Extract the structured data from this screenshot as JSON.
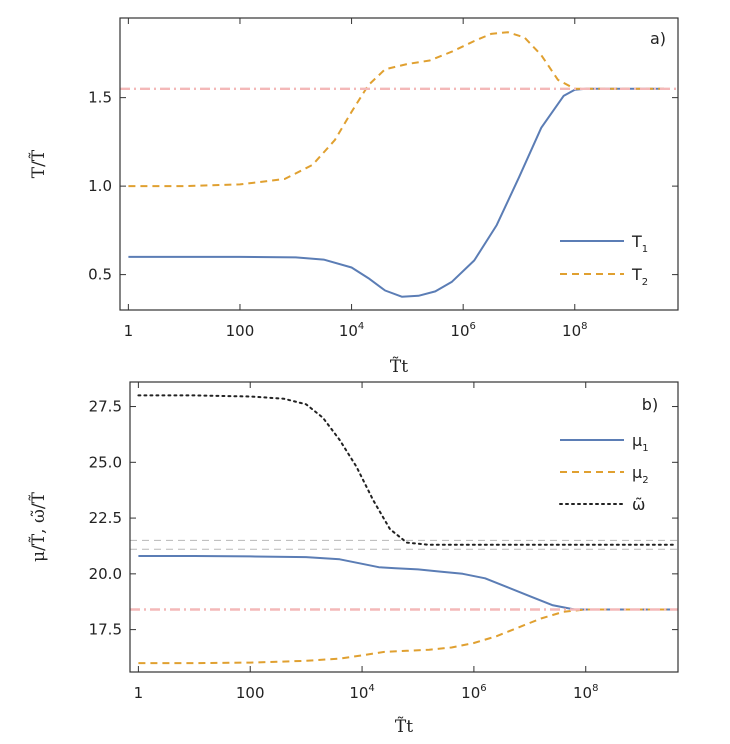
{
  "colors": {
    "blue": "#5b7db5",
    "orange": "#e0a030",
    "black": "#222222",
    "pink": "#f4b8b8",
    "gray": "#b8b8b8"
  },
  "chart_data": [
    {
      "type": "line",
      "panel_label": "a)",
      "xscale": "log10",
      "xlabel": "T̃t",
      "ylabel": "T/T̃",
      "xlim_log10": [
        -0.15,
        9.85
      ],
      "ylim": [
        0.3,
        1.95
      ],
      "xticks": [
        {
          "log10": 0,
          "base": "1",
          "exp": ""
        },
        {
          "log10": 2,
          "base": "100",
          "exp": ""
        },
        {
          "log10": 4,
          "base": "10",
          "exp": "4"
        },
        {
          "log10": 6,
          "base": "10",
          "exp": "6"
        },
        {
          "log10": 8,
          "base": "10",
          "exp": "8"
        }
      ],
      "yticks": [
        0.5,
        1.0,
        1.5
      ],
      "ytick_labels": [
        "0.5",
        "1.0",
        "1.5"
      ],
      "legend_position": "bottom-right",
      "series": [
        {
          "name": "T",
          "sub": "1",
          "color": "blue",
          "style": "solid",
          "x_log10": [
            0,
            1,
            2,
            3,
            3.5,
            4.0,
            4.3,
            4.6,
            4.9,
            5.2,
            5.5,
            5.8,
            6.2,
            6.6,
            7.0,
            7.4,
            7.8,
            8.0,
            8.2,
            8.6,
            9.0,
            9.6
          ],
          "y": [
            0.6,
            0.6,
            0.6,
            0.597,
            0.585,
            0.54,
            0.48,
            0.41,
            0.375,
            0.38,
            0.405,
            0.46,
            0.58,
            0.78,
            1.05,
            1.33,
            1.51,
            1.545,
            1.55,
            1.55,
            1.55,
            1.55
          ]
        },
        {
          "name": "T",
          "sub": "2",
          "color": "orange",
          "style": "dashed",
          "x_log10": [
            0,
            1,
            2,
            2.8,
            3.3,
            3.7,
            4.0,
            4.3,
            4.6,
            5.0,
            5.4,
            5.8,
            6.2,
            6.5,
            6.8,
            7.1,
            7.4,
            7.7,
            8.0,
            8.4,
            9.0,
            9.6
          ],
          "y": [
            1.0,
            1.0,
            1.01,
            1.04,
            1.12,
            1.26,
            1.42,
            1.57,
            1.66,
            1.69,
            1.71,
            1.76,
            1.82,
            1.86,
            1.87,
            1.84,
            1.74,
            1.6,
            1.55,
            1.55,
            1.55,
            1.55
          ]
        },
        {
          "name": "",
          "color": "pink",
          "style": "dashdot",
          "x_log10": [
            -0.15,
            9.85
          ],
          "y": [
            1.55,
            1.55
          ]
        }
      ]
    },
    {
      "type": "line",
      "panel_label": "b)",
      "xscale": "log10",
      "xlabel": "T̃t",
      "ylabel": "μ/T̃, ω̃/T̃",
      "xlim_log10": [
        -0.15,
        9.65
      ],
      "ylim": [
        15.6,
        28.6
      ],
      "xticks": [
        {
          "log10": 0,
          "base": "1",
          "exp": ""
        },
        {
          "log10": 2,
          "base": "100",
          "exp": ""
        },
        {
          "log10": 4,
          "base": "10",
          "exp": "4"
        },
        {
          "log10": 6,
          "base": "10",
          "exp": "6"
        },
        {
          "log10": 8,
          "base": "10",
          "exp": "8"
        }
      ],
      "yticks": [
        17.5,
        20.0,
        22.5,
        25.0,
        27.5
      ],
      "ytick_labels": [
        "17.5",
        "20.0",
        "22.5",
        "25.0",
        "27.5"
      ],
      "legend_position": "top-right",
      "series": [
        {
          "name": "μ",
          "sub": "1",
          "color": "blue",
          "style": "solid",
          "x_log10": [
            0,
            1,
            2,
            3,
            3.6,
            4.0,
            4.3,
            4.6,
            5.0,
            5.4,
            5.8,
            6.2,
            6.6,
            7.0,
            7.4,
            7.8,
            8.2,
            8.6,
            9.0,
            9.6
          ],
          "y": [
            20.8,
            20.8,
            20.78,
            20.75,
            20.65,
            20.45,
            20.3,
            20.25,
            20.2,
            20.1,
            20.0,
            19.8,
            19.4,
            19.0,
            18.6,
            18.4,
            18.4,
            18.4,
            18.4,
            18.4
          ]
        },
        {
          "name": "μ",
          "sub": "2",
          "color": "orange",
          "style": "dashed",
          "x_log10": [
            0,
            1,
            2,
            3,
            3.6,
            4.0,
            4.4,
            4.8,
            5.2,
            5.6,
            6.0,
            6.4,
            6.8,
            7.2,
            7.6,
            8.0,
            8.4,
            8.8,
            9.6
          ],
          "y": [
            16.0,
            16.0,
            16.02,
            16.1,
            16.2,
            16.35,
            16.5,
            16.55,
            16.6,
            16.7,
            16.9,
            17.2,
            17.6,
            18.0,
            18.3,
            18.4,
            18.4,
            18.4,
            18.4
          ]
        },
        {
          "name": "ω̃",
          "sub": "",
          "color": "black",
          "style": "dotted",
          "x_log10": [
            0,
            1,
            2,
            2.6,
            3.0,
            3.3,
            3.6,
            3.9,
            4.2,
            4.5,
            4.8,
            5.2,
            5.8,
            6.5,
            7.5,
            8.5,
            9.6
          ],
          "y": [
            28.0,
            28.0,
            27.95,
            27.85,
            27.6,
            27.0,
            26.0,
            24.8,
            23.3,
            22.0,
            21.4,
            21.3,
            21.3,
            21.3,
            21.3,
            21.3,
            21.3
          ]
        },
        {
          "name": "",
          "color": "pink",
          "style": "dashdot",
          "x_log10": [
            -0.15,
            9.65
          ],
          "y": [
            18.4,
            18.4
          ]
        },
        {
          "name": "",
          "color": "gray",
          "style": "dashed",
          "x_log10": [
            -0.15,
            9.65
          ],
          "y": [
            21.5,
            21.5
          ]
        },
        {
          "name": "",
          "color": "gray",
          "style": "dashed",
          "x_log10": [
            -0.15,
            9.65
          ],
          "y": [
            21.1,
            21.1
          ]
        }
      ]
    }
  ]
}
